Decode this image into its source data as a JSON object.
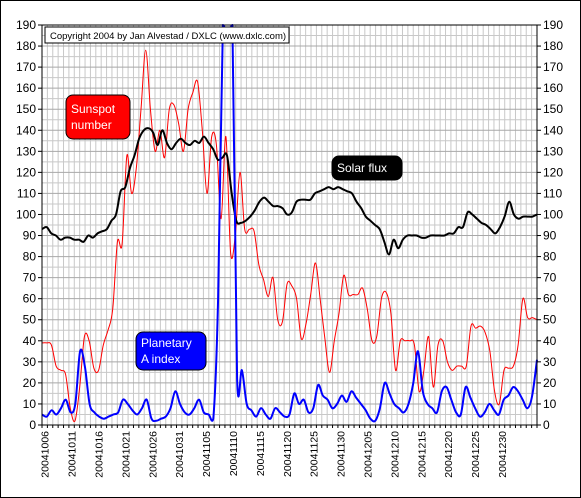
{
  "chart_data": {
    "type": "line",
    "copyright": "Copyright 2004 by Jan Alvestad / DXLC (www.dxlc.com)",
    "ylim": [
      0,
      190
    ],
    "y_ticks": [
      0,
      10,
      20,
      30,
      40,
      50,
      60,
      70,
      80,
      90,
      100,
      110,
      120,
      130,
      140,
      150,
      160,
      170,
      180,
      190
    ],
    "x_tick_labels": [
      "20041006",
      "20041011",
      "20041016",
      "20041021",
      "20041026",
      "20041031",
      "20041105",
      "20041110",
      "20041115",
      "20041120",
      "20041125",
      "20041130",
      "20041205",
      "20041210",
      "20041215",
      "20041220",
      "20041225",
      "20041230"
    ],
    "grid": true,
    "series": [
      {
        "name": "Solar flux",
        "label_lines": [
          "Solar flux"
        ],
        "color": "#000000",
        "label_bg": "#000000",
        "label_fg": "#ffffff",
        "values": [
          93,
          94,
          91,
          90,
          88,
          89,
          89,
          88,
          88,
          87,
          90,
          89,
          91,
          92,
          93,
          97,
          100,
          111,
          113,
          122,
          128,
          136,
          140,
          141,
          139,
          133,
          140,
          134,
          131,
          134,
          136,
          134,
          133,
          135,
          134,
          137,
          134,
          131,
          126,
          127,
          128,
          110,
          97,
          96,
          97,
          99,
          102,
          106,
          108,
          106,
          104,
          104,
          103,
          100,
          101,
          106,
          107,
          107,
          107,
          110,
          111,
          112,
          113,
          112,
          113,
          112,
          111,
          110,
          106,
          103,
          99,
          97,
          95,
          93,
          87,
          81,
          88,
          84,
          88,
          90,
          90,
          90,
          89,
          89,
          90,
          90,
          90,
          90,
          91,
          91,
          94,
          94,
          101,
          100,
          98,
          96,
          95,
          93,
          91,
          94,
          99,
          106,
          100,
          98,
          99,
          99,
          99,
          100
        ]
      },
      {
        "name": "Sunspot number",
        "label_lines": [
          "Sunspot",
          "number"
        ],
        "color": "#ff0000",
        "label_bg": "#ff0000",
        "label_fg": "#ffffff",
        "values": [
          39,
          39,
          38,
          28,
          26,
          24,
          8,
          2,
          18,
          42,
          40,
          27,
          26,
          38,
          45,
          55,
          87,
          86,
          128,
          110,
          122,
          150,
          178,
          150,
          130,
          140,
          127,
          150,
          152,
          143,
          130,
          150,
          158,
          163,
          140,
          110,
          137,
          133,
          98,
          137,
          82,
          90,
          120,
          93,
          93,
          92,
          76,
          69,
          61,
          70,
          50,
          49,
          67,
          66,
          60,
          41,
          48,
          62,
          77,
          60,
          41,
          25,
          40,
          53,
          71,
          62,
          62,
          62,
          65,
          55,
          40,
          42,
          60,
          63,
          53,
          26,
          40,
          40,
          40,
          38,
          16,
          26,
          42,
          18,
          38,
          40,
          30,
          26,
          28,
          28,
          28,
          47,
          46,
          47,
          44,
          35,
          16,
          10,
          26,
          27,
          28,
          38,
          60,
          51,
          51,
          50
        ]
      },
      {
        "name": "Planetary A index",
        "label_lines": [
          "Planetary",
          "A index"
        ],
        "color": "#0000ff",
        "label_bg": "#0000ff",
        "label_fg": "#ffffff",
        "values": [
          5,
          4,
          7,
          5,
          8,
          12,
          6,
          10,
          35,
          28,
          10,
          6,
          4,
          3,
          4,
          5,
          6,
          12,
          10,
          7,
          5,
          8,
          12,
          3,
          2,
          3,
          4,
          8,
          16,
          10,
          6,
          5,
          8,
          12,
          6,
          5,
          3,
          60,
          190,
          185,
          190,
          22,
          26,
          10,
          7,
          4,
          8,
          5,
          3,
          8,
          6,
          4,
          5,
          15,
          10,
          12,
          6,
          8,
          19,
          14,
          12,
          8,
          10,
          14,
          11,
          16,
          13,
          10,
          7,
          3,
          2,
          8,
          20,
          15,
          10,
          8,
          6,
          10,
          20,
          35,
          16,
          10,
          8,
          6,
          16,
          18,
          12,
          6,
          5,
          18,
          13,
          8,
          4,
          6,
          10,
          7,
          5,
          12,
          14,
          18,
          16,
          12,
          8,
          14,
          31
        ]
      }
    ]
  }
}
